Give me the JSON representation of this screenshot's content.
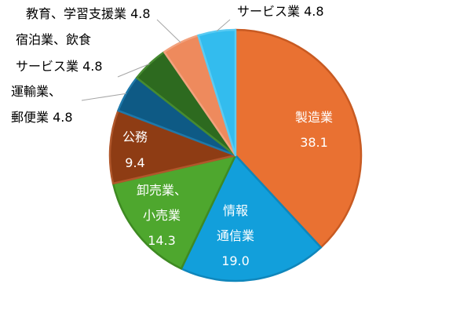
{
  "chart_data": {
    "type": "pie",
    "slices": [
      {
        "label_lines": [
          "製造業"
        ],
        "value": 38.1,
        "value_text": "38.1",
        "color": "#E97132",
        "stroke": "#C85A22",
        "label_color": "#ffffff",
        "inside": true
      },
      {
        "label_lines": [
          "情報",
          "通信業"
        ],
        "value": 19.0,
        "value_text": "19.0",
        "color": "#129FDB",
        "stroke": "#0F86BB",
        "label_color": "#ffffff",
        "inside": true
      },
      {
        "label_lines": [
          "卸売業、",
          "小売業"
        ],
        "value": 14.3,
        "value_text": "14.3",
        "color": "#4EA72E",
        "stroke": "#3E8A22",
        "label_color": "#ffffff",
        "inside": true
      },
      {
        "label_lines": [
          "公務"
        ],
        "value": 9.4,
        "value_text": "9.4",
        "color": "#8E3C14",
        "stroke": "#B0572B",
        "label_color": "#ffffff",
        "inside": true
      },
      {
        "label_lines": [
          "運輸業、",
          "郵便業 4.8"
        ],
        "value": 4.8,
        "value_text": "",
        "color": "#0E5A85",
        "stroke": "#1E78AA",
        "label_color": "#000000",
        "inside": false
      },
      {
        "label_lines": [
          "宿泊業、飲食",
          "サービス業 4.8"
        ],
        "value": 4.8,
        "value_text": "",
        "color": "#2D6A1F",
        "stroke": "#468A30",
        "label_color": "#000000",
        "inside": false
      },
      {
        "label_lines": [
          "教育、学習支援業 4.8"
        ],
        "value": 4.8,
        "value_text": "",
        "color": "#EE8A5D",
        "stroke": "#F2A27E",
        "label_color": "#000000",
        "inside": false
      },
      {
        "label_lines": [
          "サービス業 4.8"
        ],
        "value": 4.8,
        "value_text": "",
        "color": "#33BCEE",
        "stroke": "#5ACBF3",
        "label_color": "#000000",
        "inside": false
      }
    ]
  }
}
